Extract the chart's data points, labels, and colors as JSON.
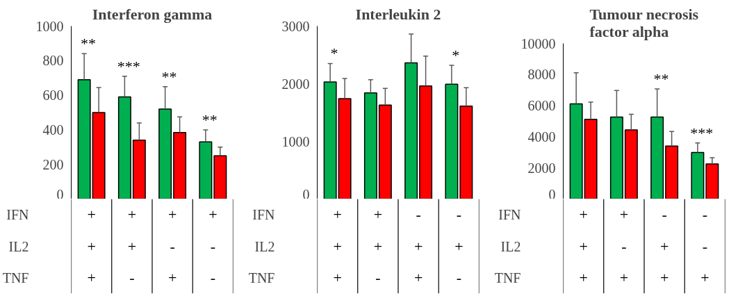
{
  "chart_data": [
    {
      "type": "bar",
      "title": "Interferon gamma",
      "categories": [
        "+\n+\n+",
        "+\n+\n-",
        "+\n-\n+",
        "+\n-\n-"
      ],
      "annotations": [
        "IFN",
        "IL2",
        "TNF"
      ],
      "ylim": [
        0,
        1000
      ],
      "yticks": [
        0,
        200,
        400,
        600,
        800,
        1000
      ],
      "tick_labels": "y",
      "series": [
        {
          "color": "#00b050",
          "values": [
            690,
            590,
            520,
            330
          ],
          "errors": [
            [
              690,
              840
            ],
            [
              590,
              710
            ],
            [
              520,
              650
            ],
            [
              330,
              400
            ]
          ],
          "value_labels": [
            "**",
            "***",
            "**",
            "**"
          ]
        },
        {
          "color": "#ff0000",
          "values": [
            500,
            340,
            385,
            250
          ],
          "errors": [
            [
              500,
              645
            ],
            [
              340,
              440
            ],
            [
              385,
              475
            ],
            [
              250,
              300
            ]
          ]
        }
      ]
    },
    {
      "type": "bar",
      "title": "Interleukin 2",
      "categories": [
        "+\n+\n+",
        "+\n+\n-",
        "-\n+\n+",
        "-\n+\n-"
      ],
      "annotations": [
        "IFN",
        "IL2",
        "TNF"
      ],
      "ylim": [
        0,
        3000
      ],
      "yticks": [
        0,
        1000,
        2000,
        3000
      ],
      "tick_labels": "y",
      "series": [
        {
          "color": "#00b050",
          "values": [
            2030,
            1840,
            2360,
            1990
          ],
          "errors": [
            [
              2030,
              2350
            ],
            [
              1840,
              2070
            ],
            [
              2360,
              2860
            ],
            [
              1990,
              2320
            ]
          ],
          "value_labels": [
            "*",
            null,
            null,
            "*"
          ]
        },
        {
          "color": "#ff0000",
          "values": [
            1740,
            1630,
            1960,
            1610
          ],
          "errors": [
            [
              1740,
              2090
            ],
            [
              1630,
              1920
            ],
            [
              1960,
              2480
            ],
            [
              1610,
              1930
            ]
          ]
        }
      ]
    },
    {
      "type": "bar",
      "title": "Tumour necrosis\nfactor alpha",
      "categories": [
        "+\n+\n+",
        "+\n-\n+",
        "-\n+\n+",
        "-\n-\n+"
      ],
      "annotations": [
        "IFN",
        "IL2",
        "TNF"
      ],
      "ylim": [
        0,
        10000
      ],
      "yticks": [
        0,
        2000,
        4000,
        6000,
        8000,
        10000
      ],
      "tick_labels": "y",
      "series": [
        {
          "color": "#00b050",
          "values": [
            6120,
            5270,
            5270,
            2990
          ],
          "errors": [
            [
              6120,
              8110
            ],
            [
              5270,
              6970
            ],
            [
              5270,
              7080
            ],
            [
              2990,
              3600
            ]
          ],
          "value_labels": [
            null,
            null,
            "**",
            "***"
          ]
        },
        {
          "color": "#ff0000",
          "values": [
            5120,
            4440,
            3400,
            2260
          ],
          "errors": [
            [
              5120,
              6230
            ],
            [
              4440,
              5450
            ],
            [
              3400,
              4340
            ],
            [
              2260,
              2660
            ]
          ]
        }
      ]
    }
  ]
}
